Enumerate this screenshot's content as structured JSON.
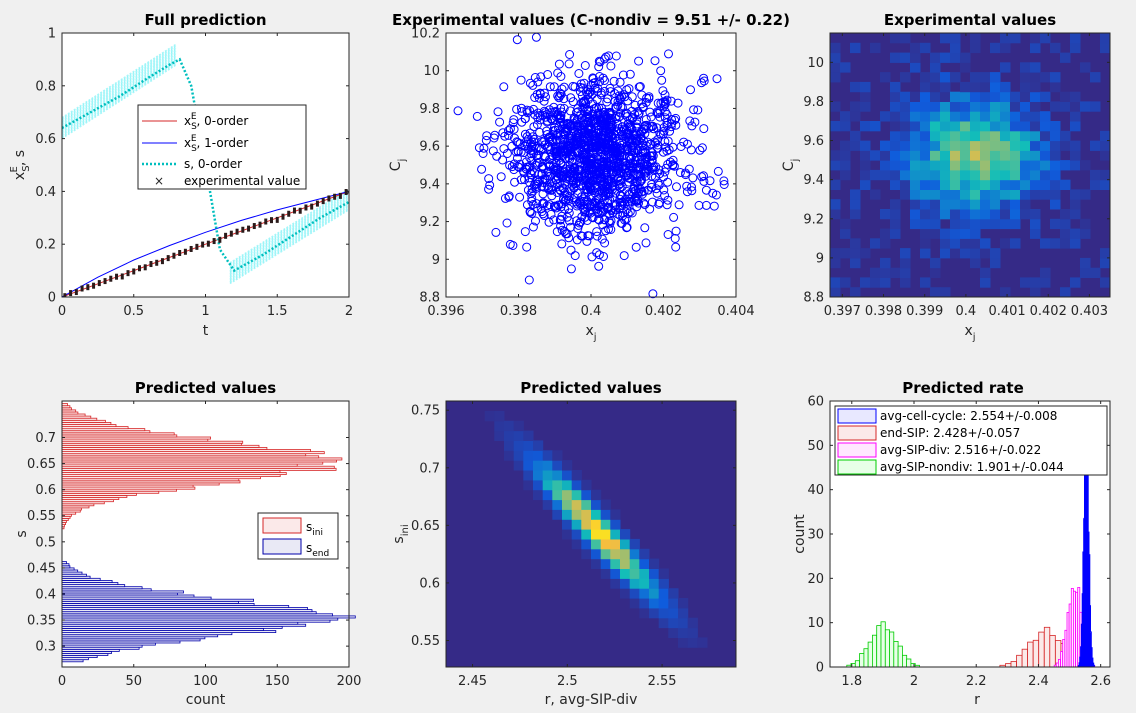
{
  "chart_data": [
    {
      "type": "line",
      "title": "Full prediction",
      "xlabel": "t",
      "ylabel": "x",
      "ylabel_sup": "E",
      "ylabel_sub": "S",
      "ylabel_tail": ", s",
      "xlim": [
        0,
        2
      ],
      "ylim": [
        0,
        1
      ],
      "xticks": [
        "0",
        "0.5",
        "1",
        "1.5",
        "2"
      ],
      "yticks": [
        "0",
        "0.2",
        "0.4",
        "0.6",
        "0.8",
        "1"
      ],
      "series": [
        {
          "name": "x_S^E, 0-order",
          "color": "#d62728",
          "x": [
            0,
            0.25,
            0.5,
            0.75,
            1.0,
            1.25,
            1.5,
            1.75,
            2.0
          ],
          "y": [
            0,
            0.05,
            0.1,
            0.15,
            0.2,
            0.25,
            0.3,
            0.35,
            0.4
          ]
        },
        {
          "name": "x_S^E, 1-order",
          "color": "#0000ff",
          "x": [
            0,
            0.25,
            0.5,
            0.75,
            1.0,
            1.25,
            1.5,
            1.75,
            2.0
          ],
          "y": [
            0,
            0.075,
            0.14,
            0.195,
            0.245,
            0.29,
            0.33,
            0.365,
            0.4
          ]
        },
        {
          "name": "s, 0-order",
          "color": "#00bebe",
          "x": [
            0,
            0.2,
            0.4,
            0.6,
            0.75,
            0.82,
            0.9,
            1.0,
            1.1,
            1.2,
            1.4,
            1.6,
            1.8,
            2.0
          ],
          "y": [
            0.64,
            0.7,
            0.76,
            0.83,
            0.88,
            0.9,
            0.8,
            0.5,
            0.18,
            0.1,
            0.16,
            0.23,
            0.3,
            0.36
          ]
        }
      ],
      "bands": [
        {
          "x": [
            0,
            0.8
          ],
          "y": [
            0.64,
            0.92
          ]
        },
        {
          "x": [
            1.17,
            2.0
          ],
          "y": [
            0.09,
            0.37
          ]
        }
      ],
      "scatter_name": "experimental value",
      "legend": {
        "x0": {
          "base": "x",
          "sup": "E",
          "sub": "S",
          "tail": ", 0-order"
        },
        "x1": {
          "base": "x",
          "sup": "E",
          "sub": "S",
          "tail": ", 1-order"
        },
        "s0": "s, 0-order",
        "exp": "experimental value"
      }
    },
    {
      "type": "scatter",
      "title": "Experimental values (C-nondiv = 9.51 +/- 0.22)",
      "xlabel": "x",
      "xlabel_sub": "j",
      "ylabel": "C",
      "ylabel_sub": "j",
      "xlim": [
        0.396,
        0.404
      ],
      "ylim": [
        8.8,
        10.2
      ],
      "xticks": [
        "0.396",
        "0.398",
        "0.4",
        "0.402",
        "0.404"
      ],
      "yticks": [
        "8.8",
        "9",
        "9.2",
        "9.4",
        "9.6",
        "9.8",
        "10",
        "10.2"
      ],
      "x_mean": 0.4001,
      "x_sd": 0.0012,
      "y_mean": 9.55,
      "y_sd": 0.2,
      "n": 1500,
      "color": "#0000ff"
    },
    {
      "type": "heatmap",
      "title": "Experimental values",
      "xlabel": "x",
      "xlabel_sub": "j",
      "ylabel": "C",
      "ylabel_sub": "j",
      "xlim": [
        0.3967,
        0.4035
      ],
      "ylim": [
        8.8,
        10.15
      ],
      "xticks": [
        "0.397",
        "0.398",
        "0.399",
        "0.4",
        "0.401",
        "0.402",
        "0.403"
      ],
      "yticks": [
        "8.8",
        "9",
        "9.2",
        "9.4",
        "9.6",
        "9.8",
        "10"
      ],
      "x_mean": 0.4002,
      "x_sd": 0.00115,
      "y_mean": 9.52,
      "y_sd": 0.2
    },
    {
      "type": "bar",
      "orientation": "horizontal",
      "title": "Predicted values",
      "xlabel": "count",
      "ylabel": "s",
      "xlim": [
        0,
        200
      ],
      "ylim": [
        0.26,
        0.77
      ],
      "xticks": [
        "0",
        "50",
        "100",
        "150",
        "200"
      ],
      "yticks": [
        "0.3",
        "0.35",
        "0.4",
        "0.45",
        "0.5",
        "0.55",
        "0.6",
        "0.65",
        "0.7"
      ],
      "series": [
        {
          "name": "s_ini",
          "color": "#d62728",
          "mean": 0.653,
          "sd": 0.04,
          "peak": 188,
          "range": [
            0.525,
            0.765
          ]
        },
        {
          "name": "s_end",
          "color": "#0000aa",
          "mean": 0.355,
          "sd": 0.037,
          "peak": 190,
          "range": [
            0.27,
            0.46
          ]
        }
      ],
      "legend": {
        "ini": {
          "base": "s",
          "sub": "ini"
        },
        "end": {
          "base": "s",
          "sub": "end"
        }
      }
    },
    {
      "type": "heatmap",
      "title": "Predicted values",
      "xlabel": "r, avg-SIP-div",
      "ylabel": "s",
      "ylabel_sub": "ini",
      "xlim": [
        2.436,
        2.589
      ],
      "ylim": [
        0.527,
        0.758
      ],
      "xticks": [
        "2.45",
        "2.5",
        "2.55"
      ],
      "yticks": [
        "0.55",
        "0.6",
        "0.65",
        "0.7",
        "0.75"
      ],
      "x_mean": 2.516,
      "y_mean": 0.645,
      "correlation": -0.95
    },
    {
      "type": "bar",
      "title": "Predicted rate",
      "xlabel": "r",
      "ylabel": "count",
      "xlim": [
        1.73,
        2.63
      ],
      "ylim": [
        0,
        60
      ],
      "xticks": [
        "1.8",
        "2",
        "2.2",
        "2.4",
        "2.6"
      ],
      "yticks": [
        "0",
        "10",
        "20",
        "30",
        "40",
        "50",
        "60"
      ],
      "series": [
        {
          "name": "avg-cell-cycle: 2.554+/-0.008",
          "color": "#0000ff",
          "mean": 2.554,
          "sd": 0.008,
          "peak": 53
        },
        {
          "name": "end-SIP: 2.428+/-0.057",
          "color": "#d62728",
          "mean": 2.428,
          "sd": 0.057,
          "peak": 8.5
        },
        {
          "name": "avg-SIP-div: 2.516+/-0.022",
          "color": "#ff00ff",
          "mean": 2.516,
          "sd": 0.022,
          "peak": 20
        },
        {
          "name": "avg-SIP-nondiv: 1.901+/-0.044",
          "color": "#00cc00",
          "mean": 1.901,
          "sd": 0.044,
          "peak": 9.5
        }
      ]
    }
  ]
}
